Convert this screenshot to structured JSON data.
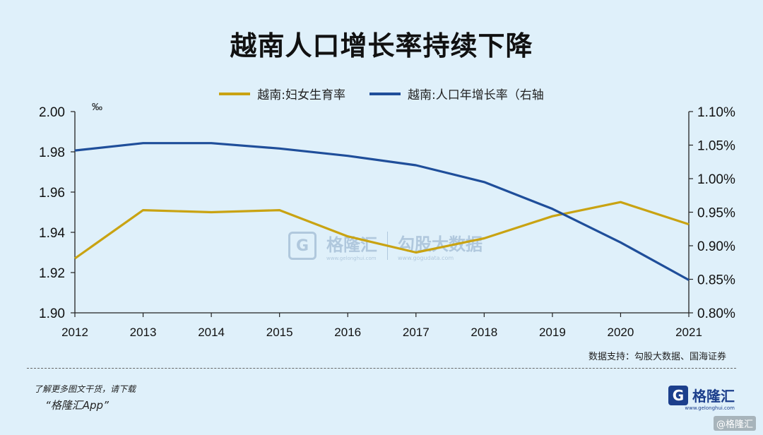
{
  "header": {
    "title": "越南人口增长率持续下降"
  },
  "colors": {
    "fertility": "#c9a312",
    "growth": "#1f4e9a",
    "background": "#dff0fa"
  },
  "chart_data": {
    "type": "line",
    "title": "越南人口增长率持续下降",
    "x": [
      "2012",
      "2013",
      "2014",
      "2015",
      "2016",
      "2017",
      "2018",
      "2019",
      "2020",
      "2021"
    ],
    "left_axis": {
      "unit": "‰",
      "ylim": [
        1.9,
        2.0
      ],
      "ticks": [
        "1.90",
        "1.92",
        "1.94",
        "1.96",
        "1.98",
        "2.00"
      ]
    },
    "right_axis": {
      "ylim": [
        0.8,
        1.1
      ],
      "ticks": [
        "0.80%",
        "0.85%",
        "0.90%",
        "0.95%",
        "1.00%",
        "1.05%",
        "1.10%"
      ]
    },
    "series": [
      {
        "name": "越南:妇女生育率",
        "axis": "left",
        "values": [
          1.927,
          1.951,
          1.95,
          1.951,
          1.938,
          1.93,
          1.937,
          1.948,
          1.955,
          1.944
        ]
      },
      {
        "name": "越南:人口年增长率（右轴",
        "axis": "right",
        "values": [
          1.042,
          1.053,
          1.053,
          1.045,
          1.034,
          1.02,
          0.995,
          0.955,
          0.905,
          0.849
        ]
      }
    ],
    "legend_position": "top-center",
    "grid": false
  },
  "watermark": {
    "brand": "格隆汇",
    "brand_url": "www.gelonghui.com",
    "data": "勾股大数据",
    "data_url": "www.gogudata.com"
  },
  "footer": {
    "source": "数据支持：勾股大数据、国海证券",
    "promo_line1": "了解更多图文干货，请下载",
    "promo_line2": "“格隆汇App”",
    "logo_text": "格隆汇",
    "logo_sub": "www.gelonghui.com",
    "corner": "@格隆汇"
  }
}
